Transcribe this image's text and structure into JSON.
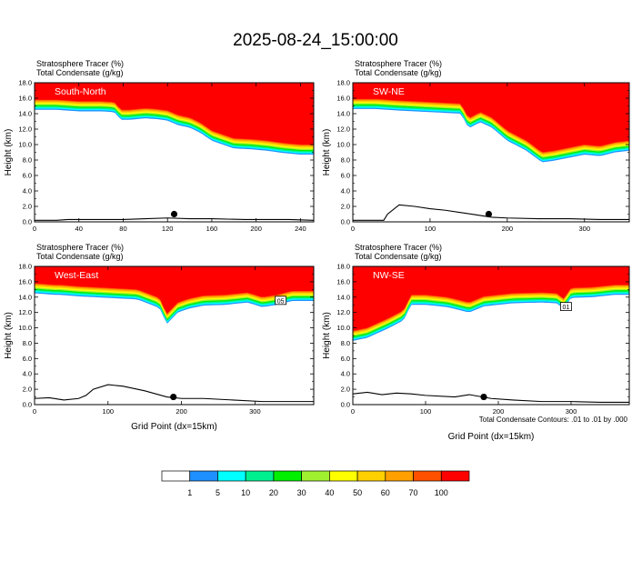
{
  "title": "2025-08-24_15:00:00",
  "footnote": "Total Condensate Contours: .01 to .01 by .000",
  "colorbar": {
    "colors": [
      "#ffffff",
      "#1e90ff",
      "#00ffff",
      "#00f090",
      "#00f000",
      "#a0f030",
      "#ffff00",
      "#ffd000",
      "#ffa000",
      "#ff5000",
      "#ff0000"
    ],
    "labels": [
      "1",
      "5",
      "10",
      "20",
      "30",
      "40",
      "50",
      "60",
      "70",
      "100"
    ]
  },
  "chart_data": [
    {
      "type": "heatmap",
      "panel": "South-North",
      "subtitle1": "Stratosphere Tracer   (%)",
      "subtitle2": "Total Condensate   (g/kg)",
      "ylabel": "Height (km)",
      "xlabel": "",
      "xlim": [
        0,
        252
      ],
      "ylim": [
        0,
        18
      ],
      "xticks": [
        "0",
        "40",
        "80",
        "120",
        "160",
        "200",
        "240"
      ],
      "yticks": [
        "0.0",
        "2.0",
        "4.0",
        "6.0",
        "8.0",
        "10.0",
        "12.0",
        "14.0",
        "16.0",
        "18.0"
      ],
      "tracer_base_km": {
        "x": [
          0,
          20,
          40,
          60,
          72,
          78,
          85,
          100,
          110,
          120,
          130,
          140,
          150,
          160,
          170,
          180,
          195,
          210,
          225,
          240,
          252
        ],
        "y": [
          15.8,
          15.8,
          15.6,
          15.6,
          15.5,
          14.5,
          14.5,
          14.7,
          14.6,
          14.4,
          13.8,
          13.5,
          12.8,
          11.8,
          11.3,
          10.8,
          10.7,
          10.5,
          10.2,
          10.0,
          10.0
        ]
      },
      "terrain_km": {
        "x": [
          0,
          20,
          30,
          50,
          80,
          100,
          120,
          140,
          160,
          190,
          230,
          252
        ],
        "y": [
          0.2,
          0.2,
          0.3,
          0.3,
          0.3,
          0.4,
          0.5,
          0.4,
          0.4,
          0.3,
          0.3,
          0.2
        ]
      },
      "marker": {
        "x": 126,
        "y": 1.0
      }
    },
    {
      "type": "heatmap",
      "panel": "SW-NE",
      "subtitle1": "Stratosphere Tracer   (%)",
      "subtitle2": "Total Condensate   (g/kg)",
      "ylabel": "Height (km)",
      "xlabel": "",
      "xlim": [
        0,
        358
      ],
      "ylim": [
        0,
        18
      ],
      "xticks": [
        "0",
        "100",
        "200",
        "300"
      ],
      "yticks": [
        "0.0",
        "2.0",
        "4.0",
        "6.0",
        "8.0",
        "10.0",
        "12.0",
        "14.0",
        "16.0",
        "18.0"
      ],
      "tracer_base_km": {
        "x": [
          0,
          30,
          60,
          100,
          140,
          150,
          165,
          180,
          200,
          225,
          245,
          260,
          280,
          300,
          320,
          340,
          358
        ],
        "y": [
          15.9,
          15.9,
          15.7,
          15.5,
          15.3,
          13.4,
          14.2,
          13.5,
          11.8,
          10.5,
          9.0,
          9.2,
          9.6,
          10.0,
          9.8,
          10.3,
          10.5
        ]
      },
      "terrain_km": {
        "x": [
          0,
          40,
          45,
          60,
          80,
          100,
          120,
          140,
          160,
          180,
          200,
          240,
          280,
          320,
          358
        ],
        "y": [
          0.2,
          0.2,
          1.0,
          2.2,
          2.0,
          1.7,
          1.5,
          1.2,
          0.9,
          0.6,
          0.5,
          0.4,
          0.4,
          0.3,
          0.3
        ]
      },
      "marker": {
        "x": 176,
        "y": 1.0
      }
    },
    {
      "type": "heatmap",
      "panel": "West-East",
      "subtitle1": "Stratosphere Tracer   (%)",
      "subtitle2": "Total Condensate   (g/kg)",
      "ylabel": "Height (km)",
      "xlabel": "Grid Point (dx=15km)",
      "xlim": [
        0,
        380
      ],
      "ylim": [
        0,
        18
      ],
      "xticks": [
        "0",
        "100",
        "200",
        "300"
      ],
      "yticks": [
        "0.0",
        "2.0",
        "4.0",
        "6.0",
        "8.0",
        "10.0",
        "12.0",
        "14.0",
        "16.0",
        "18.0"
      ],
      "contour_label": "05",
      "tracer_base_km": {
        "x": [
          0,
          28,
          35,
          60,
          100,
          140,
          170,
          180,
          195,
          210,
          230,
          260,
          290,
          310,
          330,
          350,
          380
        ],
        "y": [
          15.8,
          15.6,
          15.6,
          15.4,
          15.2,
          15.0,
          13.9,
          11.8,
          13.3,
          13.8,
          14.2,
          14.3,
          14.6,
          14.0,
          14.3,
          14.8,
          14.8
        ]
      },
      "terrain_km": {
        "x": [
          0,
          20,
          40,
          60,
          70,
          80,
          100,
          120,
          150,
          180,
          200,
          230,
          270,
          310,
          350,
          380
        ],
        "y": [
          0.8,
          0.9,
          0.6,
          0.8,
          1.2,
          2.0,
          2.6,
          2.4,
          1.8,
          1.0,
          0.8,
          0.8,
          0.6,
          0.4,
          0.4,
          0.4
        ]
      },
      "marker": {
        "x": 189,
        "y": 1.0
      }
    },
    {
      "type": "heatmap",
      "panel": "NW-SE",
      "subtitle1": "Stratosphere Tracer   (%)",
      "subtitle2": "Total Condensate   (g/kg)",
      "ylabel": "Height (km)",
      "xlabel": "Grid Point (dx=15km)",
      "xlim": [
        0,
        380
      ],
      "ylim": [
        0,
        18
      ],
      "xticks": [
        "0",
        "100",
        "200",
        "300"
      ],
      "yticks": [
        "0.0",
        "2.0",
        "4.0",
        "6.0",
        "8.0",
        "10.0",
        "12.0",
        "14.0",
        "16.0",
        "18.0"
      ],
      "contour_label": "01",
      "tracer_base_km": {
        "x": [
          0,
          20,
          50,
          70,
          80,
          100,
          130,
          160,
          180,
          220,
          260,
          280,
          290,
          300,
          330,
          360,
          380
        ],
        "y": [
          9.6,
          10.0,
          11.3,
          12.3,
          14.3,
          14.3,
          14.0,
          13.3,
          14.1,
          14.5,
          14.6,
          14.5,
          13.8,
          15.2,
          15.3,
          15.6,
          15.6
        ]
      },
      "terrain_km": {
        "x": [
          0,
          20,
          40,
          60,
          80,
          100,
          140,
          160,
          190,
          220,
          260,
          300,
          340,
          380
        ],
        "y": [
          1.4,
          1.6,
          1.3,
          1.5,
          1.4,
          1.2,
          1.0,
          1.3,
          0.8,
          0.6,
          0.4,
          0.4,
          0.3,
          0.3
        ]
      },
      "marker": {
        "x": 180,
        "y": 1.0
      }
    }
  ]
}
